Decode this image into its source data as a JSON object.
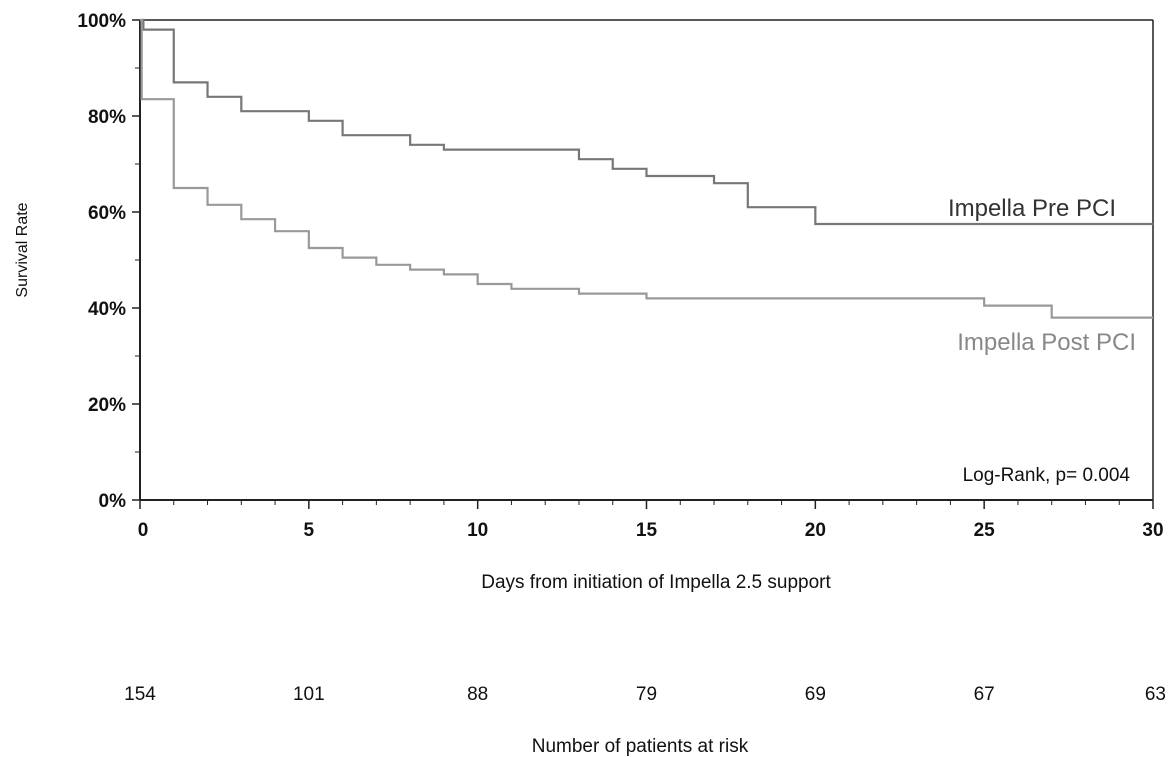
{
  "chart_data": {
    "type": "line",
    "step": true,
    "title": "",
    "xlabel": "Days from initiation of Impella 2.5 support",
    "ylabel": "Survival Rate",
    "xlim": [
      0,
      30
    ],
    "ylim": [
      0,
      100
    ],
    "x_ticks": [
      0,
      5,
      10,
      15,
      20,
      25,
      30
    ],
    "x_tick_labels": [
      "0",
      "5",
      "10",
      "15",
      "20",
      "25",
      "30"
    ],
    "y_ticks": [
      0,
      20,
      40,
      60,
      80,
      100
    ],
    "y_tick_labels": [
      "0%",
      "20%",
      "40%",
      "60%",
      "80%",
      "100%"
    ],
    "grid": false,
    "series": [
      {
        "name": "Impella Pre PCI",
        "color": "#777777",
        "x": [
          0,
          0.1,
          1,
          2,
          3,
          5,
          6,
          8,
          9,
          13,
          14,
          15,
          17,
          18,
          20,
          30
        ],
        "y": [
          100,
          98,
          87,
          84,
          81,
          79,
          76,
          74,
          73,
          71,
          69,
          67.5,
          66,
          61,
          57.5,
          57.5
        ]
      },
      {
        "name": "Impella Post PCI",
        "color": "#999999",
        "x": [
          0,
          0.05,
          1,
          2,
          3,
          4,
          5,
          6,
          7,
          8,
          9,
          10,
          11,
          13,
          15,
          25,
          27,
          30
        ],
        "y": [
          100,
          83.5,
          65,
          61.5,
          58.5,
          56,
          52.5,
          50.5,
          49,
          48,
          47,
          45,
          44,
          43,
          42,
          40.5,
          38,
          38
        ]
      }
    ],
    "annotation": "Log-Rank, p= 0.004",
    "risk_table": {
      "label": "Number of patients at risk",
      "x": [
        0,
        5,
        10,
        15,
        20,
        25,
        30
      ],
      "values": [
        "154",
        "101",
        "88",
        "79",
        "69",
        "67",
        "63"
      ]
    }
  }
}
